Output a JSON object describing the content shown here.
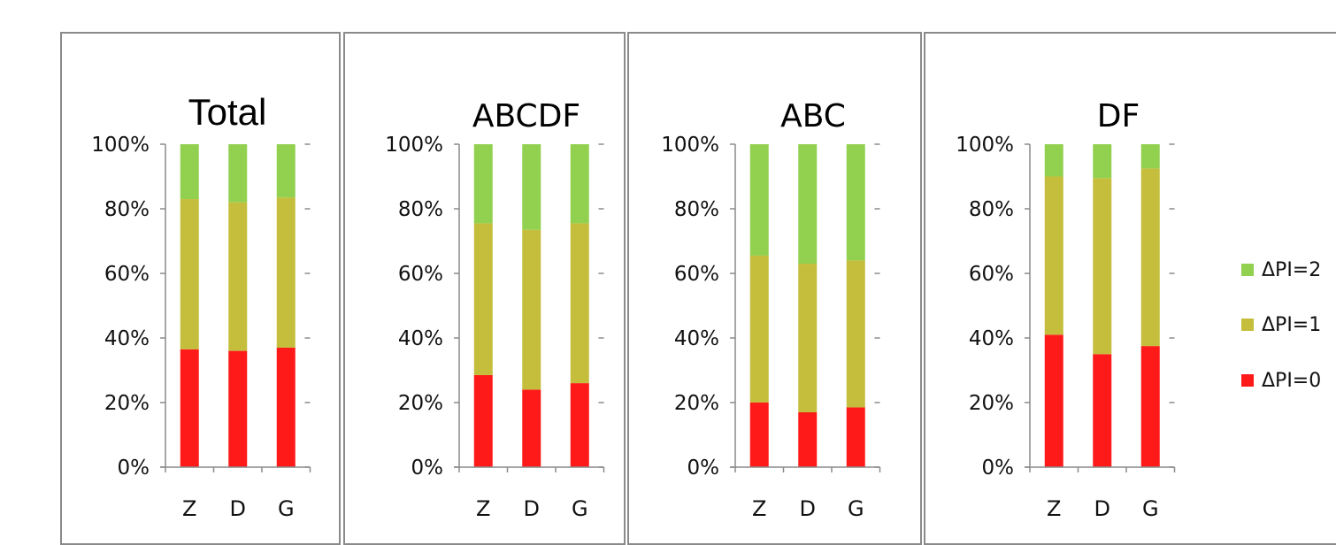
{
  "chart_data": [
    {
      "type": "bar",
      "stacked": true,
      "title": "Total",
      "categories": [
        "Z",
        "D",
        "G"
      ],
      "series": [
        {
          "name": "ΔPI=0",
          "values": [
            36.5,
            36.0,
            37.0
          ]
        },
        {
          "name": "ΔPI=1",
          "values": [
            46.5,
            46.0,
            46.5
          ]
        },
        {
          "name": "ΔPI=2",
          "values": [
            17.0,
            18.0,
            16.5
          ]
        }
      ],
      "ylim": [
        0,
        100
      ],
      "yticks": [
        "0%",
        "20%",
        "40%",
        "60%",
        "80%",
        "100%"
      ],
      "grid": false
    },
    {
      "type": "bar",
      "stacked": true,
      "title": "ABCDF",
      "categories": [
        "Z",
        "D",
        "G"
      ],
      "series": [
        {
          "name": "ΔPI=0",
          "values": [
            28.5,
            24.0,
            26.0
          ]
        },
        {
          "name": "ΔPI=1",
          "values": [
            47.0,
            49.5,
            49.5
          ]
        },
        {
          "name": "ΔPI=2",
          "values": [
            24.5,
            26.5,
            24.5
          ]
        }
      ],
      "ylim": [
        0,
        100
      ],
      "yticks": [
        "0%",
        "20%",
        "40%",
        "60%",
        "80%",
        "100%"
      ],
      "grid": false
    },
    {
      "type": "bar",
      "stacked": true,
      "title": "ABC",
      "categories": [
        "Z",
        "D",
        "G"
      ],
      "series": [
        {
          "name": "ΔPI=0",
          "values": [
            20.0,
            17.0,
            18.5
          ]
        },
        {
          "name": "ΔPI=1",
          "values": [
            45.5,
            46.0,
            45.5
          ]
        },
        {
          "name": "ΔPI=2",
          "values": [
            34.5,
            37.0,
            36.0
          ]
        }
      ],
      "ylim": [
        0,
        100
      ],
      "yticks": [
        "0%",
        "20%",
        "40%",
        "60%",
        "80%",
        "100%"
      ],
      "grid": false
    },
    {
      "type": "bar",
      "stacked": true,
      "title": "DF",
      "categories": [
        "Z",
        "D",
        "G"
      ],
      "series": [
        {
          "name": "ΔPI=0",
          "values": [
            41.0,
            35.0,
            37.5
          ]
        },
        {
          "name": "ΔPI=1",
          "values": [
            49.0,
            54.5,
            55.0
          ]
        },
        {
          "name": "ΔPI=2",
          "values": [
            10.0,
            10.5,
            7.5
          ]
        }
      ],
      "ylim": [
        0,
        100
      ],
      "yticks": [
        "0%",
        "20%",
        "40%",
        "60%",
        "80%",
        "100%"
      ],
      "grid": false
    }
  ],
  "legend": {
    "placement": "right",
    "items": [
      {
        "label": "ΔPI=2",
        "color": "#92d050"
      },
      {
        "label": "ΔPI=1",
        "color": "#c4be3c"
      },
      {
        "label": "ΔPI=0",
        "color": "#ff1a1a"
      }
    ]
  },
  "colors": {
    "ΔPI=0": "#ff1a1a",
    "ΔPI=1": "#c4be3c",
    "ΔPI=2": "#92d050"
  }
}
